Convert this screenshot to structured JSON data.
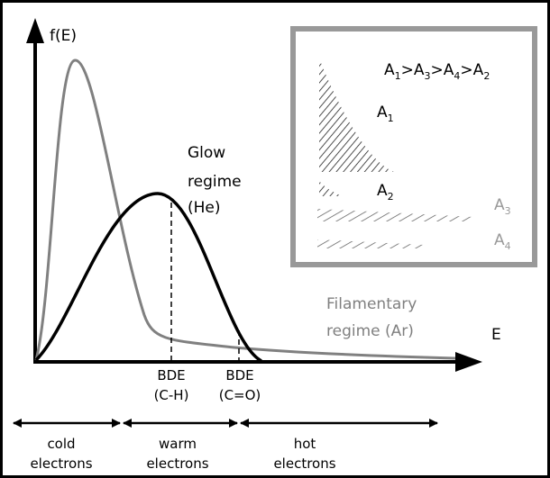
{
  "axes": {
    "y_label": "f(E)",
    "x_label": "E"
  },
  "curves": {
    "glow": [
      "Glow",
      "regime",
      "(He)"
    ],
    "filamentary": [
      "Filamentary",
      "regime (Ar)"
    ]
  },
  "thresholds": [
    {
      "name": "BDE",
      "bond": "(C-H)"
    },
    {
      "name": "BDE",
      "bond": "(C=O)"
    }
  ],
  "ranges": [
    {
      "label": "cold",
      "sub": "electrons"
    },
    {
      "label": "warm",
      "sub": "electrons"
    },
    {
      "label": "hot",
      "sub": "electrons"
    }
  ],
  "inset": {
    "separator": ">",
    "order": [
      {
        "text": "A",
        "sub": "1"
      },
      {
        "text": "A",
        "sub": "3"
      },
      {
        "text": "A",
        "sub": "4"
      },
      {
        "text": "A",
        "sub": "2"
      }
    ],
    "areas": [
      {
        "text": "A",
        "sub": "1"
      },
      {
        "text": "A",
        "sub": "2"
      },
      {
        "text": "A",
        "sub": "3"
      },
      {
        "text": "A",
        "sub": "4"
      }
    ]
  }
}
